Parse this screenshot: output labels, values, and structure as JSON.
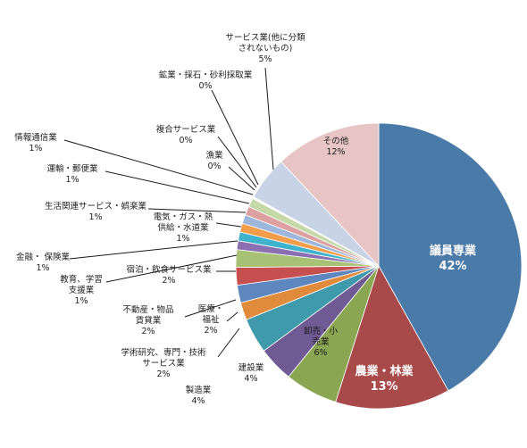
{
  "chart_data": {
    "type": "pie",
    "title": "",
    "slices": [
      {
        "name": "議員専業",
        "value": 42,
        "label": "42%",
        "color": "#4a7aa7"
      },
      {
        "name": "農業・林業",
        "value": 13,
        "label": "13%",
        "color": "#a84a4a"
      },
      {
        "name": "卸売・小売業",
        "value": 6,
        "label": "6%",
        "color": "#8aa653"
      },
      {
        "name": "建設業",
        "value": 4,
        "label": "4%",
        "color": "#6f5a93"
      },
      {
        "name": "製造業",
        "value": 4,
        "label": "4%",
        "color": "#3f9aac"
      },
      {
        "name": "学術研究、専門・技術サービス業",
        "value": 2,
        "label": "2%",
        "color": "#e08a3c"
      },
      {
        "name": "医療・福祉",
        "value": 2,
        "label": "2%",
        "color": "#5e87c0"
      },
      {
        "name": "不動産・物品賃貸業",
        "value": 2,
        "label": "2%",
        "color": "#c65050"
      },
      {
        "name": "宿泊・飲食サービス業",
        "value": 2,
        "label": "2%",
        "color": "#a7c274"
      },
      {
        "name": "教育、学習支援業",
        "value": 1,
        "label": "1%",
        "color": "#8a70b0"
      },
      {
        "name": "金融・保険業",
        "value": 1,
        "label": "1%",
        "color": "#3fb2cc"
      },
      {
        "name": "電気・ガス・熱供給・水道業",
        "value": 1,
        "label": "1%",
        "color": "#f39c4a"
      },
      {
        "name": "生活関連サービス・娯楽業",
        "value": 1,
        "label": "1%",
        "color": "#9db6dc"
      },
      {
        "name": "運輸・郵便業",
        "value": 1,
        "label": "1%",
        "color": "#dca0a0"
      },
      {
        "name": "情報通信業",
        "value": 1,
        "label": "1%",
        "color": "#c4d8a8"
      },
      {
        "name": "漁業",
        "value": 0,
        "label": "0%",
        "color": "#b6a6cc"
      },
      {
        "name": "複合サービス業",
        "value": 0,
        "label": "0%",
        "color": "#a6d4e0"
      },
      {
        "name": "鉱業・採石・砂利採取業",
        "value": 0,
        "label": "0%",
        "color": "#f8c9a0"
      },
      {
        "name": "サービス業(他に分類されないもの)",
        "value": 5,
        "label": "5%",
        "color": "#c8d4e6"
      },
      {
        "name": "その他",
        "value": 12,
        "label": "12%",
        "color": "#e6c5c4"
      }
    ],
    "display_labels": {
      "議員専業": [
        "議員専業",
        "42%"
      ],
      "農業・林業": [
        "農業・林業",
        "13%"
      ],
      "卸売・小売業": [
        "卸売・小",
        "売業",
        "6%"
      ],
      "建設業": [
        "建設業",
        "4%"
      ],
      "製造業": [
        "製造業",
        "4%"
      ],
      "学術研究、専門・技術サービス業": [
        "学術研究、専門・技術",
        "サービス業",
        "2%"
      ],
      "医療・福祉": [
        "医療・",
        "福祉",
        "2%"
      ],
      "不動産・物品賃貸業": [
        "不動産・物品",
        "賃貸業",
        "2%"
      ],
      "宿泊・飲食サービス業": [
        "宿泊・飲食サービス業",
        "2%"
      ],
      "教育、学習支援業": [
        "教育、学習",
        "支援業",
        "1%"
      ],
      "金融・保険業": [
        "金融・ 保険業",
        "1%"
      ],
      "電気・ガス・熱供給・水道業": [
        "電気・ガス・熱",
        "供給・水道業",
        "1%"
      ],
      "生活関連サービス・娯楽業": [
        "生活関連サービス・娯楽業",
        "1%"
      ],
      "運輸・郵便業": [
        "運輸・郵便業",
        "1%"
      ],
      "情報通信業": [
        "情報通信業",
        "1%"
      ],
      "漁業": [
        "漁業",
        "0%"
      ],
      "複合サービス業": [
        "複合サービス業",
        "0%"
      ],
      "鉱業・採石・砂利採取業": [
        "鉱業・採石・砂利採取業",
        "0%"
      ],
      "サービス業(他に分類されないもの)": [
        "サービス業(他に分類",
        "されないもの)",
        "5%"
      ],
      "その他": [
        "その他",
        "12%"
      ]
    },
    "legend": "none"
  }
}
